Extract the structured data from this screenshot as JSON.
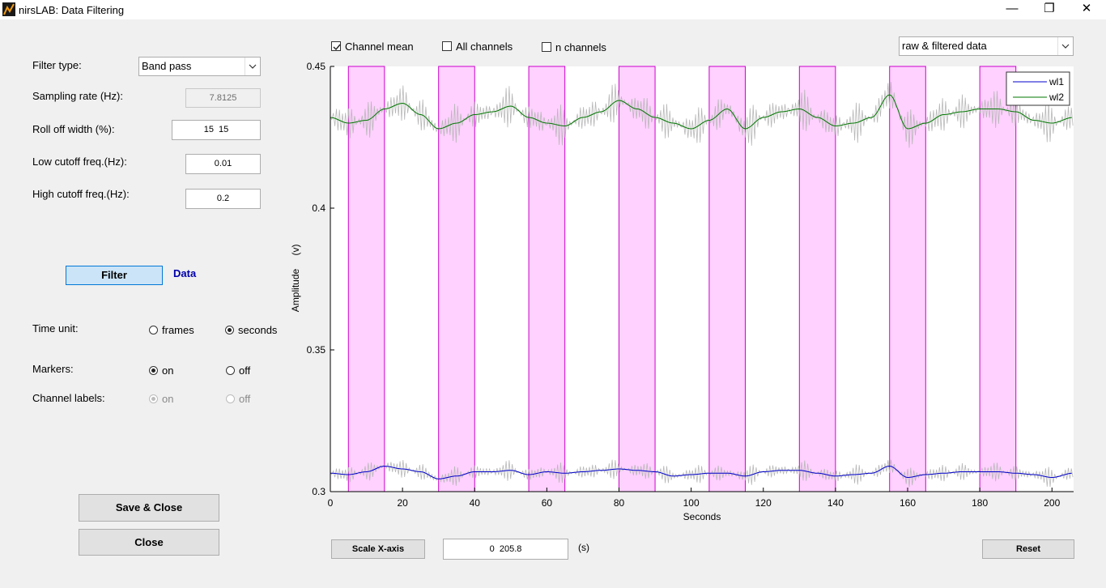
{
  "window": {
    "title": "nirsLAB:  Data Filtering",
    "minimize": "—",
    "maximize": "❐",
    "close": "✕"
  },
  "filter_panel": {
    "filter_type_label": "Filter type:",
    "filter_type_value": "Band pass",
    "sampling_rate_label": "Sampling rate (Hz):",
    "sampling_rate_value": "7.8125",
    "rolloff_label": "Roll off width (%):",
    "rolloff_value": "15  15",
    "low_cutoff_label": "Low cutoff freq.(Hz):",
    "low_cutoff_value": "0.01",
    "high_cutoff_label": "High cutoff freq.(Hz):",
    "high_cutoff_value": "0.2",
    "filter_button": "Filter",
    "data_label": "Data"
  },
  "options": {
    "time_unit_label": "Time unit:",
    "time_frames": "frames",
    "time_seconds": "seconds",
    "time_selected": "seconds",
    "markers_label": "Markers:",
    "markers_on": "on",
    "markers_off": "off",
    "markers_selected": "on",
    "channel_labels_label": "Channel labels:",
    "channel_labels_on": "on",
    "channel_labels_off": "off",
    "channel_labels_selected": "on"
  },
  "footer": {
    "save_close": "Save & Close",
    "close": "Close",
    "scale_x": "Scale X-axis",
    "x_range_value": "0  205.8",
    "x_range_unit": "(s)",
    "reset": "Reset"
  },
  "view": {
    "channel_mean": "Channel mean",
    "channel_mean_checked": true,
    "all_channels": "All channels",
    "all_channels_checked": false,
    "n_channels": "n channels",
    "n_channels_checked": false,
    "display_mode": "raw & filtered data"
  },
  "chart_data": {
    "type": "line",
    "xlabel": "Seconds",
    "ylabel": "Amplitude",
    "ylabel_unit": "(v)",
    "xlim": [
      0,
      206
    ],
    "ylim": [
      0.3,
      0.45
    ],
    "xticks": [
      0,
      20,
      40,
      60,
      80,
      100,
      120,
      140,
      160,
      180,
      200
    ],
    "yticks": [
      0.3,
      0.35,
      0.4,
      0.45
    ],
    "ytick_labels": [
      "0.3",
      "0.35",
      "0.4",
      "0.45"
    ],
    "marker_color": "#ff99ff",
    "marker_blocks": [
      [
        5,
        15
      ],
      [
        30,
        40
      ],
      [
        55,
        65
      ],
      [
        80,
        90
      ],
      [
        105,
        115
      ],
      [
        130,
        140
      ],
      [
        155,
        165
      ],
      [
        180,
        190
      ]
    ],
    "legend_position": "top-right",
    "series": [
      {
        "name": "wl1",
        "color": "#0000cc",
        "x": [
          0,
          5,
          10,
          15,
          20,
          25,
          30,
          35,
          40,
          45,
          50,
          55,
          60,
          65,
          70,
          75,
          80,
          85,
          90,
          95,
          100,
          105,
          110,
          115,
          120,
          125,
          130,
          135,
          140,
          145,
          150,
          155,
          160,
          165,
          170,
          175,
          180,
          185,
          190,
          195,
          200,
          205.8
        ],
        "values": [
          0.3065,
          0.306,
          0.307,
          0.309,
          0.308,
          0.307,
          0.3045,
          0.3055,
          0.307,
          0.307,
          0.3075,
          0.306,
          0.307,
          0.3065,
          0.307,
          0.3075,
          0.308,
          0.3075,
          0.307,
          0.3055,
          0.306,
          0.3065,
          0.3065,
          0.3055,
          0.307,
          0.3075,
          0.3075,
          0.3065,
          0.3055,
          0.306,
          0.3065,
          0.309,
          0.305,
          0.306,
          0.3065,
          0.307,
          0.307,
          0.307,
          0.3065,
          0.306,
          0.305,
          0.3065
        ]
      },
      {
        "name": "wl2",
        "color": "#007700",
        "x": [
          0,
          5,
          10,
          15,
          20,
          25,
          30,
          35,
          40,
          45,
          50,
          55,
          60,
          65,
          70,
          75,
          80,
          85,
          90,
          95,
          100,
          105,
          110,
          115,
          120,
          125,
          130,
          135,
          140,
          145,
          150,
          155,
          160,
          165,
          170,
          175,
          180,
          185,
          190,
          195,
          200,
          205.8
        ],
        "values": [
          0.432,
          0.43,
          0.431,
          0.435,
          0.437,
          0.433,
          0.428,
          0.43,
          0.433,
          0.434,
          0.436,
          0.432,
          0.43,
          0.429,
          0.432,
          0.434,
          0.438,
          0.435,
          0.432,
          0.43,
          0.428,
          0.431,
          0.435,
          0.428,
          0.432,
          0.434,
          0.435,
          0.432,
          0.429,
          0.43,
          0.432,
          0.44,
          0.428,
          0.43,
          0.433,
          0.434,
          0.435,
          0.435,
          0.434,
          0.431,
          0.43,
          0.432
        ]
      }
    ],
    "raw_noise_amplitude": {
      "wl1": 0.004,
      "wl2": 0.008
    },
    "raw_color": "#b8b8b8"
  }
}
